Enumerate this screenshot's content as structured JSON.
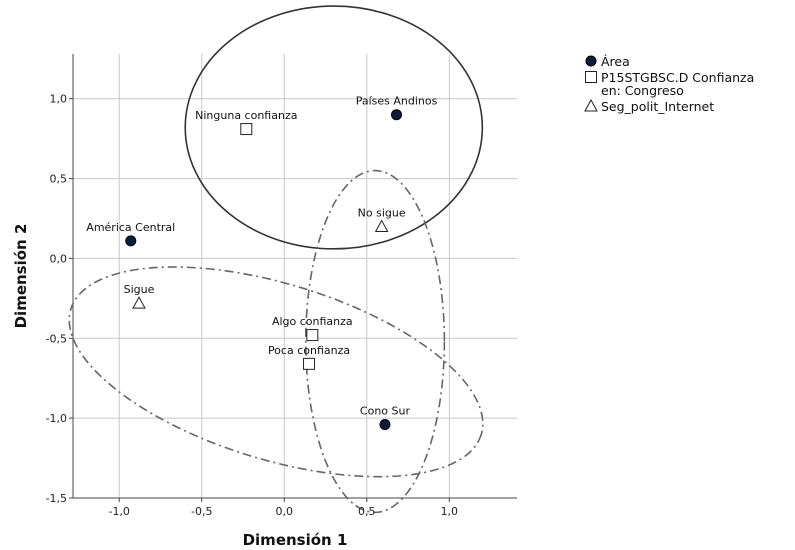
{
  "chart_data": {
    "type": "scatter",
    "xlabel": "Dimensión 1",
    "ylabel": "Dimensión 2",
    "xlim": [
      -1.4,
      1.4
    ],
    "ylim": [
      -1.5,
      1.25
    ],
    "xticks": [
      "-1,0",
      "-0,5",
      "0,0",
      "0,5",
      "1,0"
    ],
    "xtick_values": [
      -1.0,
      -0.5,
      0.0,
      0.5,
      1.0
    ],
    "yticks": [
      "1,0",
      "0,5",
      "0,0",
      "-0,5",
      "-1,0",
      "-1,5"
    ],
    "ytick_values": [
      1.0,
      0.5,
      0.0,
      -0.5,
      -1.0,
      -1.5
    ],
    "grid": true,
    "legend_position": "top-right",
    "series": [
      {
        "name": "Área",
        "marker": "filled-circle",
        "color": "#0d1b3e",
        "points": [
          {
            "label": "Países Andinos",
            "x": 0.68,
            "y": 0.9
          },
          {
            "label": "América Central",
            "x": -0.93,
            "y": 0.11
          },
          {
            "label": "Cono Sur",
            "x": 0.61,
            "y": -1.04
          }
        ]
      },
      {
        "name": "P15STGBSC.D Confianza en: Congreso",
        "legend_lines": [
          "P15STGBSC.D Confianza",
          "en: Congreso"
        ],
        "marker": "open-square",
        "color": "#222222",
        "points": [
          {
            "label": "Ninguna confianza",
            "x": -0.23,
            "y": 0.81
          },
          {
            "label": "Algo confianza",
            "x": 0.17,
            "y": -0.48
          },
          {
            "label": "Poca confianza",
            "x": 0.15,
            "y": -0.66
          }
        ]
      },
      {
        "name": "Seg_polit_Internet",
        "marker": "open-triangle",
        "color": "#222222",
        "points": [
          {
            "label": "No sigue",
            "x": 0.59,
            "y": 0.2
          },
          {
            "label": "Sigue",
            "x": -0.88,
            "y": -0.28
          }
        ]
      }
    ],
    "ellipses": [
      {
        "cx": 0.3,
        "cy": 0.82,
        "rx": 0.9,
        "ry": 0.76,
        "style": "solid"
      },
      {
        "cx": 0.55,
        "cy": -0.52,
        "rx": 0.42,
        "ry": 1.07,
        "style": "dash-dot"
      },
      {
        "cx": -0.05,
        "cy": -0.71,
        "rx": 1.3,
        "ry": 0.55,
        "rotate_deg": 17,
        "style": "dash-dot"
      }
    ]
  }
}
